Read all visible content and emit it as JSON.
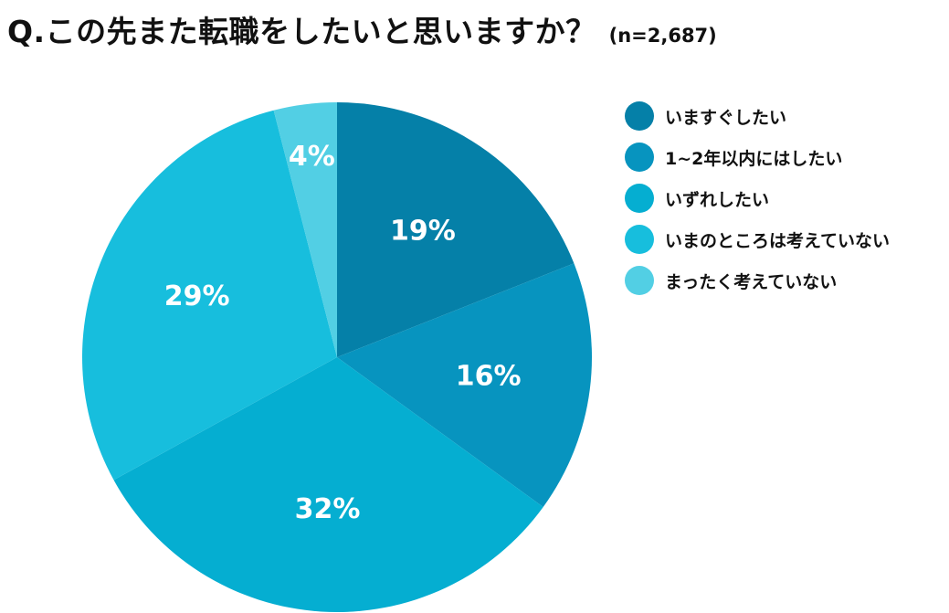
{
  "title": {
    "question": "Q.この先また転職をしたいと思いますか？",
    "sample": "(n=2,687)"
  },
  "chart_data": {
    "type": "pie",
    "categories": [
      "いますぐしたい",
      "1~2年以内にはしたい",
      "いずれしたい",
      "いまのところは考えていない",
      "まったく考えていない"
    ],
    "values": [
      19,
      16,
      32,
      29,
      4
    ],
    "value_labels": [
      "19%",
      "16%",
      "32%",
      "29%",
      "4%"
    ],
    "colors": [
      "#0580a8",
      "#0794bf",
      "#05aed1",
      "#17bedd",
      "#52cfe4"
    ],
    "start": "12 o'clock",
    "direction": "clockwise",
    "legend_position": "right"
  }
}
